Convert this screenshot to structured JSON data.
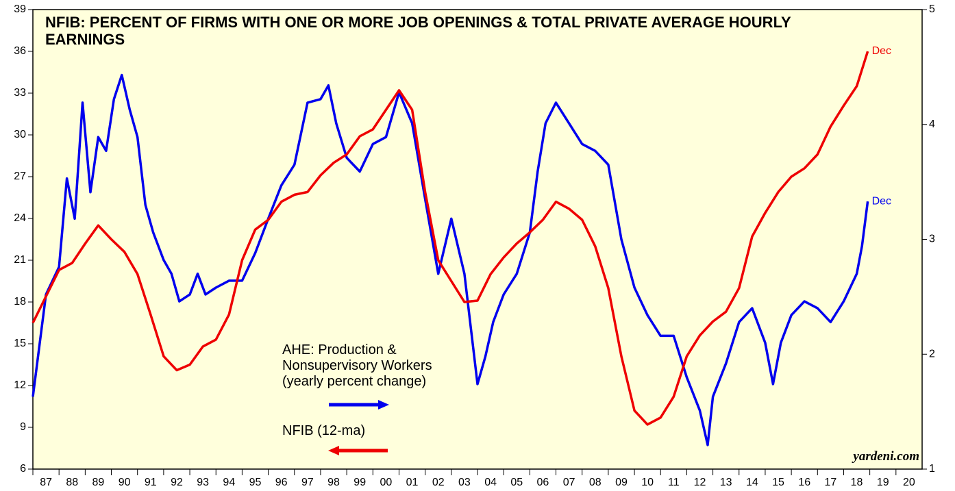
{
  "chart_data": {
    "type": "line",
    "title": "NFIB: PERCENT OF FIRMS WITH ONE OR MORE JOB OPENINGS & TOTAL PRIVATE AVERAGE HOURLY EARNINGS",
    "xlim": [
      1987,
      2021
    ],
    "xticks": [
      {
        "value": 1987.5,
        "label": "87"
      },
      {
        "value": 1988.5,
        "label": "88"
      },
      {
        "value": 1989.5,
        "label": "89"
      },
      {
        "value": 1990.5,
        "label": "90"
      },
      {
        "value": 1991.5,
        "label": "91"
      },
      {
        "value": 1992.5,
        "label": "92"
      },
      {
        "value": 1993.5,
        "label": "93"
      },
      {
        "value": 1994.5,
        "label": "94"
      },
      {
        "value": 1995.5,
        "label": "95"
      },
      {
        "value": 1996.5,
        "label": "96"
      },
      {
        "value": 1997.5,
        "label": "97"
      },
      {
        "value": 1998.5,
        "label": "98"
      },
      {
        "value": 1999.5,
        "label": "99"
      },
      {
        "value": 2000.5,
        "label": "00"
      },
      {
        "value": 2001.5,
        "label": "01"
      },
      {
        "value": 2002.5,
        "label": "02"
      },
      {
        "value": 2003.5,
        "label": "03"
      },
      {
        "value": 2004.5,
        "label": "04"
      },
      {
        "value": 2005.5,
        "label": "05"
      },
      {
        "value": 2006.5,
        "label": "06"
      },
      {
        "value": 2007.5,
        "label": "07"
      },
      {
        "value": 2008.5,
        "label": "08"
      },
      {
        "value": 2009.5,
        "label": "09"
      },
      {
        "value": 2010.5,
        "label": "10"
      },
      {
        "value": 2011.5,
        "label": "11"
      },
      {
        "value": 2012.5,
        "label": "12"
      },
      {
        "value": 2013.5,
        "label": "13"
      },
      {
        "value": 2014.5,
        "label": "14"
      },
      {
        "value": 2015.5,
        "label": "15"
      },
      {
        "value": 2016.5,
        "label": "16"
      },
      {
        "value": 2017.5,
        "label": "17"
      },
      {
        "value": 2018.5,
        "label": "18"
      },
      {
        "value": 2019.5,
        "label": "19"
      },
      {
        "value": 2020.5,
        "label": "20"
      }
    ],
    "ylim": [
      6,
      39
    ],
    "yticks": [
      6,
      9,
      12,
      15,
      18,
      21,
      24,
      27,
      30,
      33,
      36,
      39
    ],
    "y2lim": [
      1,
      5
    ],
    "y2ticks": [
      1,
      2,
      3,
      4,
      5
    ],
    "series": [
      {
        "name": "AHE: Production &\nNonsupervisory Workers\n(yearly percent change)",
        "color": "#0000ee",
        "axis": "y2",
        "x": [
          1987.0,
          1987.5,
          1988.0,
          1988.3,
          1988.6,
          1988.9,
          1989.2,
          1989.5,
          1989.8,
          1990.1,
          1990.4,
          1990.7,
          1991.0,
          1991.3,
          1991.6,
          1992.0,
          1992.3,
          1992.6,
          1993.0,
          1993.3,
          1993.6,
          1994.0,
          1994.5,
          1995.0,
          1995.5,
          1996.0,
          1996.5,
          1997.0,
          1997.5,
          1998.0,
          1998.3,
          1998.6,
          1999.0,
          1999.5,
          2000.0,
          2000.5,
          2001.0,
          2001.5,
          2002.0,
          2002.5,
          2003.0,
          2003.5,
          2004.0,
          2004.3,
          2004.6,
          2005.0,
          2005.5,
          2006.0,
          2006.3,
          2006.6,
          2007.0,
          2007.5,
          2008.0,
          2008.5,
          2009.0,
          2009.5,
          2010.0,
          2010.5,
          2011.0,
          2011.5,
          2012.0,
          2012.5,
          2012.8,
          2013.0,
          2013.5,
          2014.0,
          2014.5,
          2015.0,
          2015.3,
          2015.6,
          2016.0,
          2016.5,
          2017.0,
          2017.5,
          2018.0,
          2018.5,
          2018.7,
          2018.92
        ],
        "values": [
          1.63,
          2.52,
          2.76,
          3.53,
          3.18,
          4.19,
          3.41,
          3.89,
          3.77,
          4.22,
          4.43,
          4.13,
          3.89,
          3.3,
          3.06,
          2.82,
          2.7,
          2.46,
          2.52,
          2.7,
          2.52,
          2.58,
          2.64,
          2.64,
          2.88,
          3.18,
          3.47,
          3.65,
          4.19,
          4.22,
          4.34,
          4.01,
          3.71,
          3.59,
          3.83,
          3.89,
          4.28,
          4.01,
          3.35,
          2.7,
          3.18,
          2.7,
          1.74,
          1.98,
          2.28,
          2.52,
          2.7,
          3.06,
          3.59,
          4.01,
          4.19,
          4.01,
          3.83,
          3.77,
          3.65,
          3.0,
          2.58,
          2.34,
          2.16,
          2.16,
          1.8,
          1.51,
          1.21,
          1.63,
          1.92,
          2.28,
          2.4,
          2.1,
          1.74,
          2.1,
          2.34,
          2.46,
          2.4,
          2.28,
          2.46,
          2.7,
          2.94,
          3.33
        ]
      },
      {
        "name": "NFIB (12-ma)",
        "color": "#ee0000",
        "axis": "y",
        "x": [
          1987.0,
          1988.0,
          1988.5,
          1989.0,
          1989.5,
          1990.0,
          1990.5,
          1991.0,
          1991.5,
          1992.0,
          1992.5,
          1993.0,
          1993.5,
          1994.0,
          1994.5,
          1995.0,
          1995.5,
          1996.0,
          1996.5,
          1997.0,
          1997.5,
          1998.0,
          1998.5,
          1999.0,
          1999.5,
          2000.0,
          2000.5,
          2001.0,
          2001.5,
          2002.0,
          2002.5,
          2003.0,
          2003.5,
          2004.0,
          2004.5,
          2005.0,
          2005.5,
          2006.0,
          2006.5,
          2007.0,
          2007.5,
          2008.0,
          2008.5,
          2009.0,
          2009.5,
          2010.0,
          2010.5,
          2011.0,
          2011.5,
          2012.0,
          2012.5,
          2013.0,
          2013.5,
          2014.0,
          2014.5,
          2015.0,
          2015.5,
          2016.0,
          2016.5,
          2017.0,
          2017.5,
          2018.0,
          2018.5,
          2018.92
        ],
        "values": [
          16.5,
          20.3,
          20.8,
          22.2,
          23.5,
          22.5,
          21.6,
          20.0,
          17.1,
          14.1,
          13.1,
          13.5,
          14.8,
          15.3,
          17.1,
          21.0,
          23.2,
          23.9,
          25.2,
          25.7,
          25.9,
          27.1,
          28.0,
          28.6,
          29.9,
          30.4,
          31.8,
          33.2,
          31.8,
          25.9,
          21.0,
          19.5,
          18.0,
          18.1,
          20.0,
          21.2,
          22.2,
          23.0,
          23.9,
          25.2,
          24.7,
          23.9,
          22.0,
          19.0,
          14.1,
          10.2,
          9.2,
          9.7,
          11.2,
          14.1,
          15.6,
          16.6,
          17.3,
          19.0,
          22.7,
          24.4,
          25.9,
          27.0,
          27.6,
          28.6,
          30.6,
          32.1,
          33.5,
          36.0
        ]
      }
    ],
    "annotations": [
      {
        "text": "Dec",
        "series": 0
      },
      {
        "text": "Dec",
        "series": 1
      },
      {
        "text": "yardeni.com"
      }
    ]
  }
}
